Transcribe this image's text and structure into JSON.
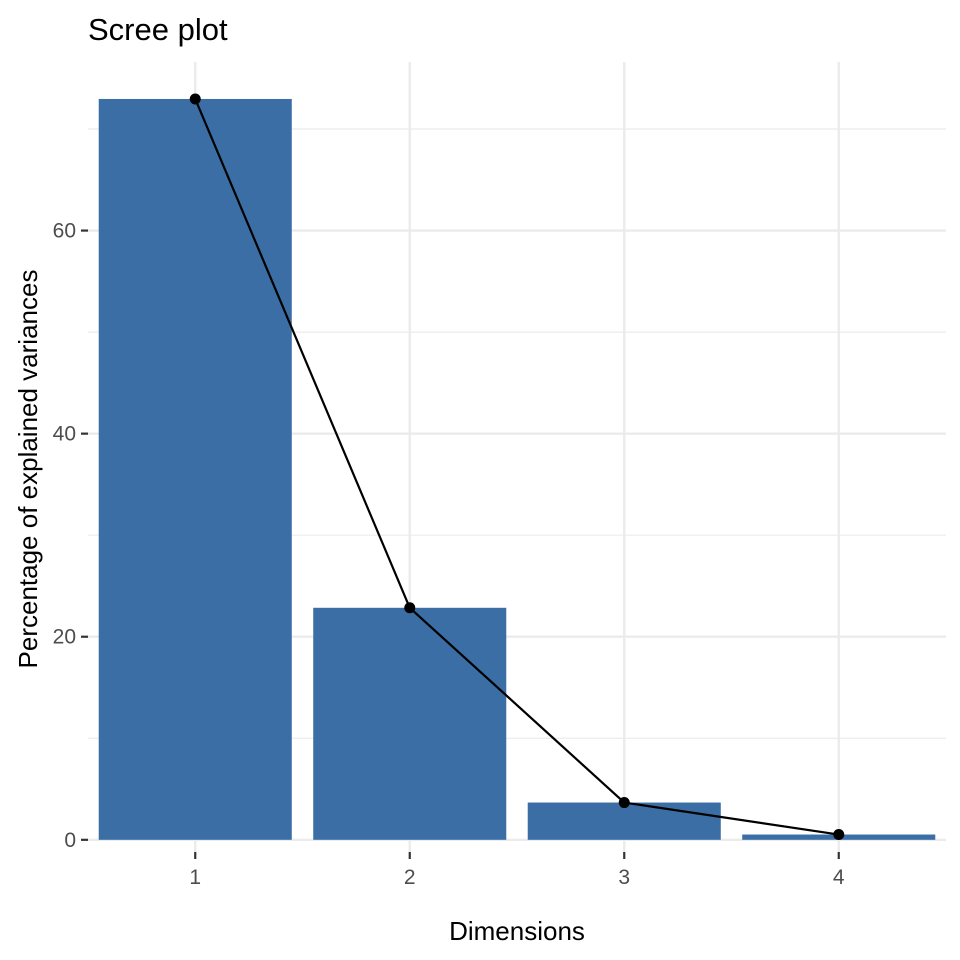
{
  "chart_data": {
    "type": "bar",
    "title": "Scree plot",
    "xlabel": "Dimensions",
    "ylabel": "Percentage of explained variances",
    "categories": [
      "1",
      "2",
      "3",
      "4"
    ],
    "values": [
      72.96,
      22.85,
      3.67,
      0.52
    ],
    "ylim": [
      -1.2,
      76.6
    ],
    "yticks": [
      0,
      20,
      40,
      60
    ],
    "grid": true,
    "bar_color": "#3A6EA5",
    "line_color": "#000000",
    "point_color": "#000000",
    "grid_color": "#EBEBEB"
  }
}
